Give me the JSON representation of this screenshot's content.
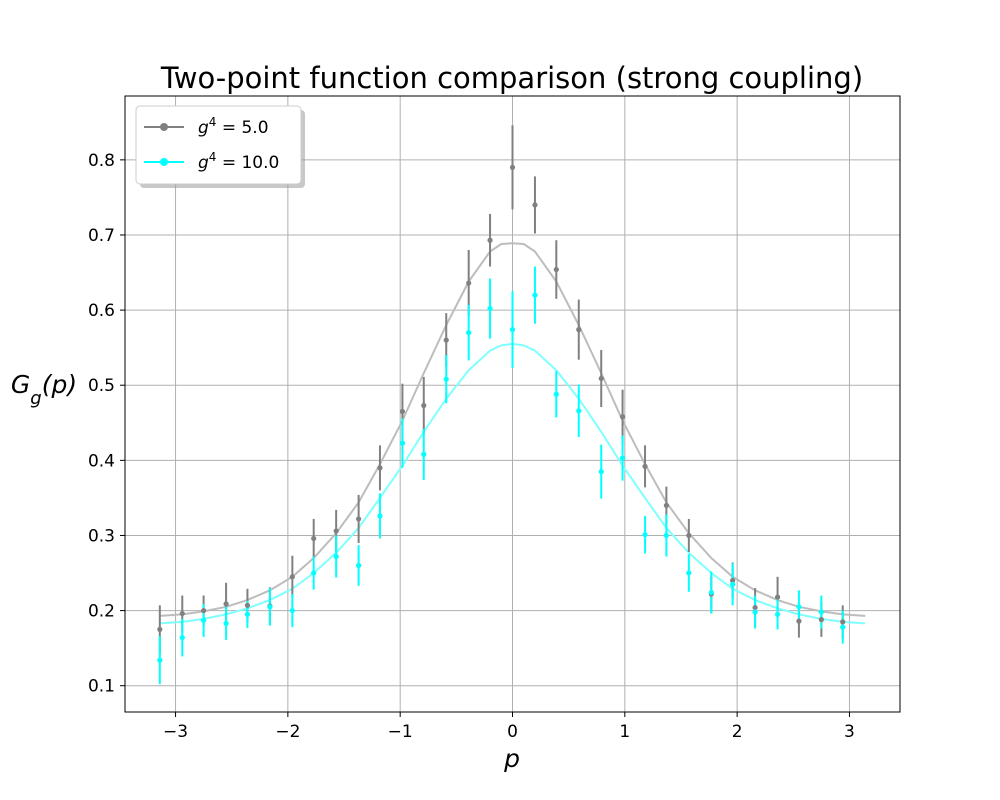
{
  "chart_data": {
    "type": "scatter",
    "title": "Two-point function comparison (strong coupling)",
    "xlabel": "p",
    "ylabel": "G_g(p)",
    "xlim": [
      -3.45,
      3.45
    ],
    "ylim": [
      0.065,
      0.885
    ],
    "xticks": [
      -3,
      -2,
      -1,
      0,
      1,
      2,
      3
    ],
    "yticks": [
      0.1,
      0.2,
      0.3,
      0.4,
      0.5,
      0.6,
      0.7,
      0.8
    ],
    "grid": true,
    "legend_position": "top-left",
    "series": [
      {
        "name": "g^4 = 5.0",
        "color": "#808080",
        "fit_color": "#bdbdbd",
        "x": [
          -3.14,
          -2.94,
          -2.75,
          -2.55,
          -2.36,
          -2.16,
          -1.96,
          -1.77,
          -1.57,
          -1.37,
          -1.18,
          -0.98,
          -0.79,
          -0.59,
          -0.39,
          -0.2,
          0.0,
          0.2,
          0.39,
          0.59,
          0.79,
          0.98,
          1.18,
          1.37,
          1.57,
          1.77,
          1.96,
          2.16,
          2.36,
          2.55,
          2.75,
          2.94
        ],
        "y": [
          0.175,
          0.196,
          0.2,
          0.209,
          0.207,
          0.206,
          0.245,
          0.296,
          0.306,
          0.322,
          0.39,
          0.465,
          0.473,
          0.56,
          0.636,
          0.693,
          0.79,
          0.74,
          0.654,
          0.574,
          0.509,
          0.458,
          0.392,
          0.34,
          0.3,
          0.222,
          0.24,
          0.204,
          0.218,
          0.186,
          0.188,
          0.185
        ],
        "yerr": [
          0.032,
          0.024,
          0.02,
          0.028,
          0.022,
          0.025,
          0.028,
          0.026,
          0.028,
          0.032,
          0.03,
          0.037,
          0.038,
          0.036,
          0.044,
          0.035,
          0.056,
          0.038,
          0.039,
          0.04,
          0.038,
          0.036,
          0.028,
          0.025,
          0.022,
          0.025,
          0.024,
          0.026,
          0.027,
          0.022,
          0.023,
          0.022
        ],
        "fit": {
          "x": [
            -3.14,
            -2.94,
            -2.75,
            -2.55,
            -2.36,
            -2.16,
            -1.96,
            -1.77,
            -1.57,
            -1.37,
            -1.18,
            -0.98,
            -0.79,
            -0.59,
            -0.39,
            -0.2,
            -0.1,
            0.0,
            0.1,
            0.2,
            0.39,
            0.59,
            0.79,
            0.98,
            1.18,
            1.37,
            1.57,
            1.77,
            1.96,
            2.16,
            2.36,
            2.55,
            2.75,
            2.94,
            3.14
          ],
          "y": [
            0.193,
            0.195,
            0.199,
            0.205,
            0.214,
            0.227,
            0.245,
            0.27,
            0.303,
            0.344,
            0.395,
            0.453,
            0.516,
            0.58,
            0.638,
            0.678,
            0.688,
            0.689,
            0.688,
            0.678,
            0.638,
            0.58,
            0.516,
            0.453,
            0.395,
            0.344,
            0.303,
            0.27,
            0.245,
            0.227,
            0.214,
            0.205,
            0.199,
            0.195,
            0.193
          ]
        }
      },
      {
        "name": "g^4 = 10.0",
        "color": "#00ffff",
        "fit_color": "#80ffff",
        "x": [
          -3.14,
          -2.94,
          -2.75,
          -2.55,
          -2.36,
          -2.16,
          -1.96,
          -1.77,
          -1.57,
          -1.37,
          -1.18,
          -0.98,
          -0.79,
          -0.59,
          -0.39,
          -0.2,
          0.0,
          0.2,
          0.39,
          0.59,
          0.79,
          0.98,
          1.18,
          1.37,
          1.57,
          1.77,
          1.96,
          2.16,
          2.36,
          2.55,
          2.75,
          2.94
        ],
        "y": [
          0.134,
          0.164,
          0.187,
          0.183,
          0.195,
          0.205,
          0.2,
          0.25,
          0.272,
          0.26,
          0.326,
          0.423,
          0.408,
          0.508,
          0.57,
          0.602,
          0.574,
          0.62,
          0.488,
          0.466,
          0.385,
          0.403,
          0.301,
          0.3,
          0.25,
          0.224,
          0.235,
          0.198,
          0.195,
          0.205,
          0.198,
          0.178
        ],
        "yerr": [
          0.032,
          0.025,
          0.022,
          0.022,
          0.018,
          0.025,
          0.022,
          0.022,
          0.028,
          0.027,
          0.03,
          0.033,
          0.034,
          0.032,
          0.037,
          0.04,
          0.051,
          0.038,
          0.031,
          0.035,
          0.036,
          0.03,
          0.025,
          0.028,
          0.025,
          0.028,
          0.028,
          0.022,
          0.02,
          0.022,
          0.022,
          0.022
        ],
        "fit": {
          "x": [
            -3.14,
            -2.94,
            -2.75,
            -2.55,
            -2.36,
            -2.16,
            -1.96,
            -1.77,
            -1.57,
            -1.37,
            -1.18,
            -0.98,
            -0.79,
            -0.59,
            -0.39,
            -0.2,
            -0.1,
            0.0,
            0.1,
            0.2,
            0.39,
            0.59,
            0.79,
            0.98,
            1.18,
            1.37,
            1.57,
            1.77,
            1.96,
            2.16,
            2.36,
            2.55,
            2.75,
            2.94,
            3.14
          ],
          "y": [
            0.183,
            0.185,
            0.189,
            0.195,
            0.203,
            0.214,
            0.229,
            0.25,
            0.277,
            0.31,
            0.35,
            0.393,
            0.438,
            0.482,
            0.52,
            0.546,
            0.553,
            0.555,
            0.553,
            0.546,
            0.52,
            0.482,
            0.438,
            0.393,
            0.35,
            0.31,
            0.277,
            0.25,
            0.229,
            0.214,
            0.203,
            0.195,
            0.189,
            0.185,
            0.183
          ]
        }
      }
    ]
  }
}
